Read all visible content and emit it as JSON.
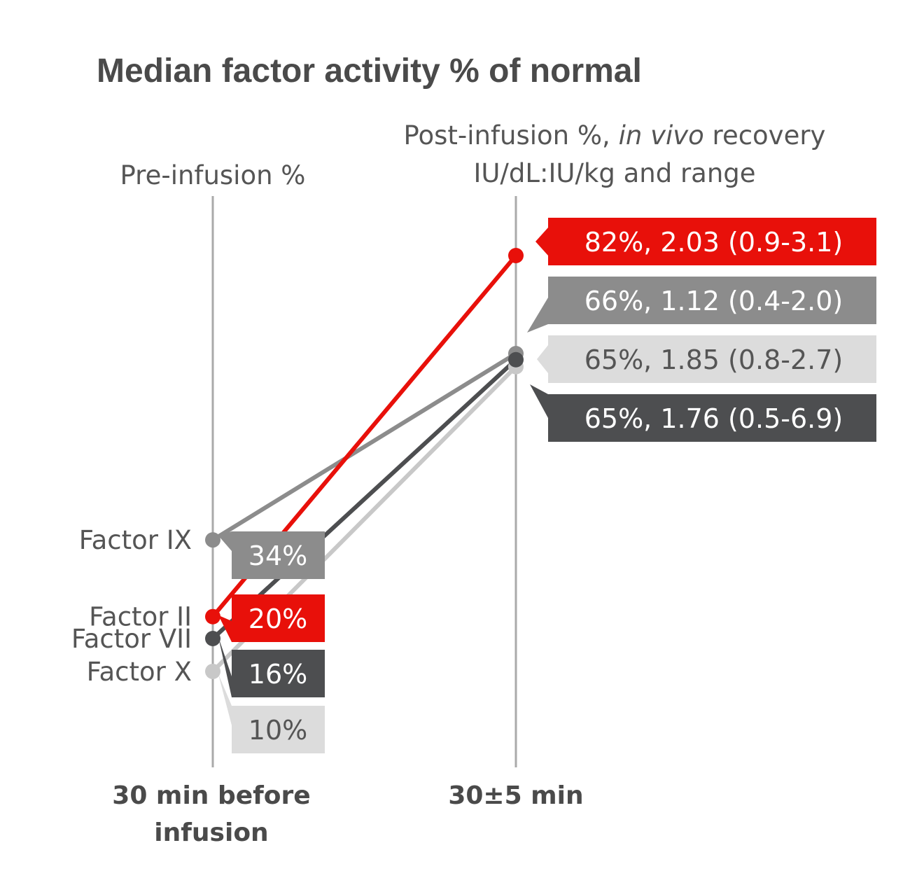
{
  "chart_data": {
    "type": "line",
    "title": "Median factor activity % of normal",
    "column_headers": {
      "pre": "Pre-infusion %",
      "post_line1_a": "Post-infusion %, ",
      "post_line1_italic": "in vivo",
      "post_line1_b": " recovery",
      "post_line2": "IU/dL:IU/kg and range"
    },
    "x": [
      "30 min before infusion",
      "30±5 min"
    ],
    "x_tick_lines": [
      [
        "30 min before",
        "infusion"
      ],
      [
        "30±5 min"
      ]
    ],
    "series": [
      {
        "name": "Factor IX",
        "values": [
          34,
          66
        ],
        "color": "#8c8c8c",
        "text_color": "#ffffff",
        "pre_label": "34%",
        "post_label": "66%, 1.12 (0.4-2.0)"
      },
      {
        "name": "Factor II",
        "values": [
          20,
          82
        ],
        "color": "#e8100a",
        "text_color": "#ffffff",
        "pre_label": "20%",
        "post_label": "82%, 2.03 (0.9-3.1)"
      },
      {
        "name": "Factor VII",
        "values": [
          16,
          65
        ],
        "color": "#4d4e50",
        "text_color": "#ffffff",
        "pre_label": "16%",
        "post_label": "65%, 1.76 (0.5-6.9)"
      },
      {
        "name": "Factor X",
        "values": [
          10,
          65
        ],
        "color": "#c8c8c8",
        "label_color": "#dcdcdc",
        "text_color": "#555555",
        "pre_label": "10%",
        "post_label": "65%, 1.85 (0.8-2.7)"
      }
    ]
  }
}
